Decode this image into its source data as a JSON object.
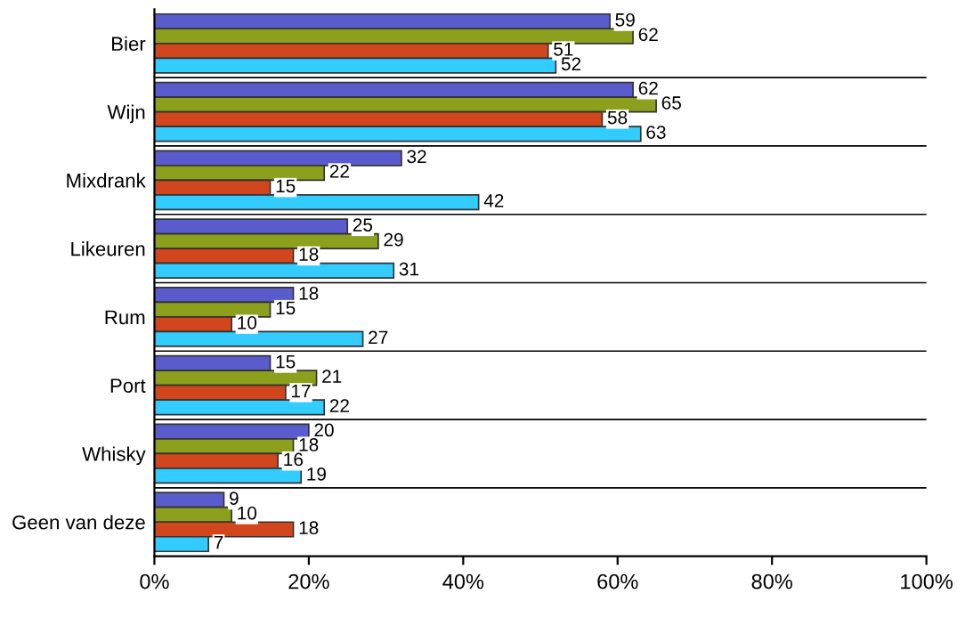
{
  "chart_data": {
    "type": "bar",
    "orientation": "horizontal",
    "categories": [
      "Bier",
      "Wijn",
      "Mixdrank",
      "Likeuren",
      "Rum",
      "Port",
      "Whisky",
      "Geen van deze"
    ],
    "series": [
      {
        "color": "#5a5ccd",
        "values": [
          59,
          62,
          32,
          25,
          18,
          15,
          20,
          9
        ]
      },
      {
        "color": "#8ca01e",
        "values": [
          62,
          65,
          22,
          29,
          15,
          21,
          18,
          10
        ]
      },
      {
        "color": "#d2461e",
        "values": [
          51,
          58,
          15,
          18,
          10,
          17,
          16,
          18
        ]
      },
      {
        "color": "#33ccff",
        "values": [
          52,
          63,
          42,
          31,
          27,
          22,
          19,
          7
        ]
      }
    ],
    "xlim": [
      0,
      100
    ],
    "xticks": [
      {
        "value": 0,
        "label": "0%"
      },
      {
        "value": 20,
        "label": "20%"
      },
      {
        "value": 40,
        "label": "40%"
      },
      {
        "value": 60,
        "label": "60%"
      },
      {
        "value": 80,
        "label": "80%"
      },
      {
        "value": 100,
        "label": "100%"
      }
    ],
    "data_labels": true,
    "grid": "y",
    "legend": false
  }
}
